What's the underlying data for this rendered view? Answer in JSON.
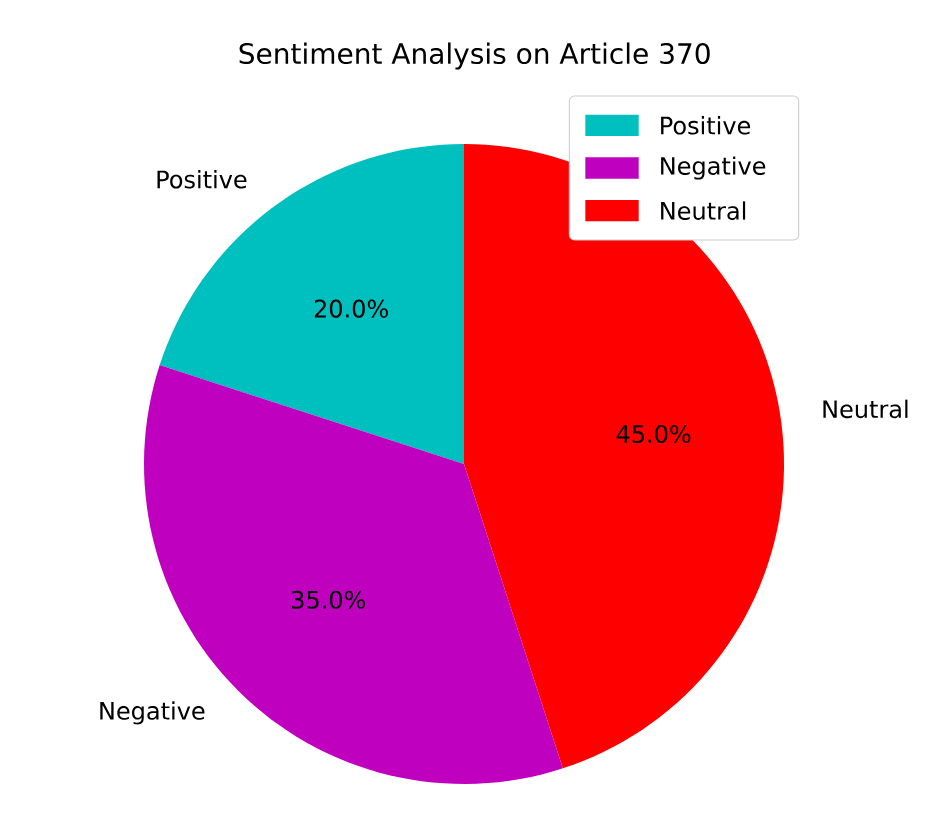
{
  "chart_data": {
    "type": "pie",
    "title": "Sentiment Analysis on Article 370",
    "categories": [
      "Positive",
      "Negative",
      "Neutral"
    ],
    "values": [
      20,
      35,
      45
    ],
    "colors": [
      "#00bfbf",
      "#bf00bf",
      "#ff0000"
    ],
    "value_labels": [
      "20.0%",
      "35.0%",
      "45.0%"
    ],
    "legend": "top right"
  }
}
